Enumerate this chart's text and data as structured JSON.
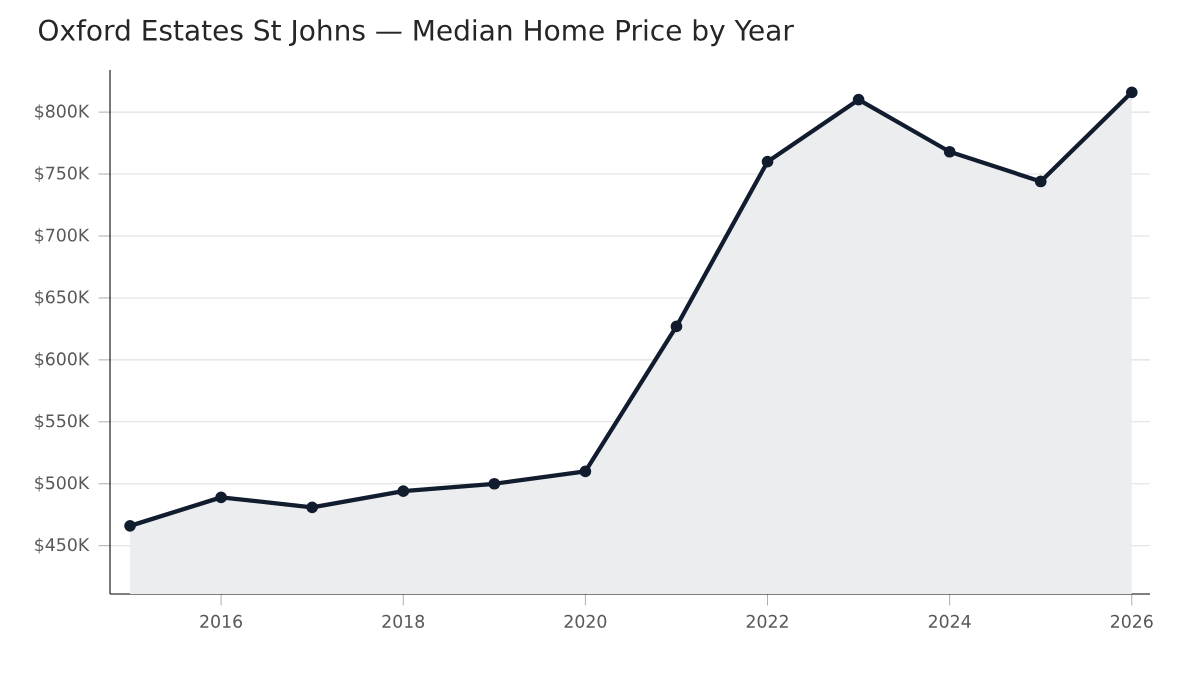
{
  "chart_data": {
    "type": "area",
    "title": "Oxford Estates St Johns — Median Home Price by Year",
    "x": [
      2015,
      2016,
      2017,
      2018,
      2019,
      2020,
      2021,
      2022,
      2023,
      2024,
      2025,
      2026
    ],
    "series": [
      {
        "color": "#111c2e",
        "values": [
          466,
          489,
          481,
          494,
          500,
          510,
          627,
          760,
          810,
          768,
          744,
          816
        ]
      }
    ],
    "xlim": [
      2014.78,
      2026.2
    ],
    "xticks": [
      2016,
      2018,
      2020,
      2022,
      2024,
      2026
    ],
    "ylim": [
      411,
      834
    ],
    "yticks": [
      {
        "value": 450,
        "label": "$450K"
      },
      {
        "value": 500,
        "label": "$500K"
      },
      {
        "value": 550,
        "label": "$550K"
      },
      {
        "value": 600,
        "label": "$600K"
      },
      {
        "value": 650,
        "label": "$650K"
      },
      {
        "value": 700,
        "label": "$700K"
      },
      {
        "value": 750,
        "label": "$750K"
      },
      {
        "value": 800,
        "label": "$800K"
      }
    ],
    "grid": "y",
    "marker": "circle",
    "line_style": "solid"
  }
}
